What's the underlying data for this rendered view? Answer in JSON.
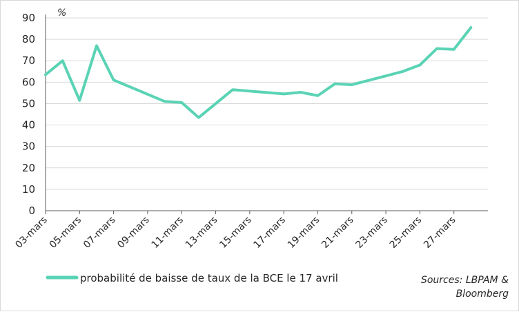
{
  "chart_data": {
    "type": "line",
    "unit_label": "%",
    "ylim": [
      0,
      90
    ],
    "y_ticks": [
      0,
      10,
      20,
      30,
      40,
      50,
      60,
      70,
      80,
      90
    ],
    "x": [
      "03-mars",
      "04-mars",
      "05-mars",
      "06-mars",
      "07-mars",
      "08-mars",
      "09-mars",
      "10-mars",
      "11-mars",
      "12-mars",
      "13-mars",
      "14-mars",
      "15-mars",
      "16-mars",
      "17-mars",
      "18-mars",
      "19-mars",
      "20-mars",
      "21-mars",
      "22-mars",
      "23-mars",
      "24-mars",
      "25-mars",
      "26-mars",
      "27-mars",
      "28-mars"
    ],
    "x_tick_labels": [
      "03-mars",
      "05-mars",
      "07-mars",
      "09-mars",
      "11-mars",
      "13-mars",
      "15-mars",
      "17-mars",
      "19-mars",
      "21-mars",
      "23-mars",
      "25-mars",
      "27-mars"
    ],
    "series": [
      {
        "name": "probabilité de baisse de taux de la BCE le 17 avril",
        "color": "#5ad3b5",
        "values": [
          {
            "x": 0,
            "y": 63.5
          },
          {
            "x": 1,
            "y": 70
          },
          {
            "x": 2,
            "y": 51.5
          },
          {
            "x": 3,
            "y": 77
          },
          {
            "x": 4,
            "y": 61
          },
          {
            "x": 7,
            "y": 51
          },
          {
            "x": 8,
            "y": 50.5
          },
          {
            "x": 9,
            "y": 43.5
          },
          {
            "x": 11,
            "y": 56.5
          },
          {
            "x": 14,
            "y": 54.5
          },
          {
            "x": 15,
            "y": 55.3
          },
          {
            "x": 16,
            "y": 53.7
          },
          {
            "x": 17,
            "y": 59.2
          },
          {
            "x": 18,
            "y": 58.8
          },
          {
            "x": 21,
            "y": 65
          },
          {
            "x": 22,
            "y": 68
          },
          {
            "x": 23,
            "y": 75.7
          },
          {
            "x": 24,
            "y": 75.3
          },
          {
            "x": 25,
            "y": 85.5
          }
        ]
      }
    ],
    "grid": true,
    "legend": "bottom-left"
  },
  "source_text_line1": "Sources: LBPAM &",
  "source_text_line2": "Bloomberg"
}
